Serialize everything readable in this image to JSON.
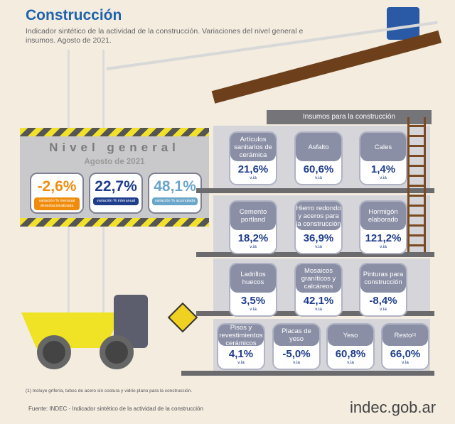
{
  "header": {
    "title": "Construcción",
    "subtitle": "Indicador sintético de la actividad de la construcción. Variaciones del nivel general e insumos. Agosto de 2021."
  },
  "nivel_general": {
    "title": "Nivel general",
    "period": "Agosto de 2021",
    "kpis": [
      {
        "value": "-2,6%",
        "label": "variación % mensual desestacionalizada",
        "color": "#ef8c0c"
      },
      {
        "value": "22,7%",
        "label": "variación % interanual",
        "color": "#1e3d8a"
      },
      {
        "value": "48,1%",
        "label": "variación % acumulada",
        "color": "#6aa6c9"
      }
    ]
  },
  "insumos": {
    "title": "Insumos para la construcción",
    "unit": "v.ia",
    "items": [
      {
        "name": "Artículos sanitarios de cerámica",
        "value": "21,6%"
      },
      {
        "name": "Asfalto",
        "value": "60,6%"
      },
      {
        "name": "Cales",
        "value": "1,4%"
      },
      {
        "name": "Cemento portland",
        "value": "18,2%"
      },
      {
        "name": "Hierro redondo y aceros para la construcción",
        "value": "36,9%"
      },
      {
        "name": "Hormigón elaborado",
        "value": "121,2%"
      },
      {
        "name": "Ladrillos huecos",
        "value": "3,5%"
      },
      {
        "name": "Mosaicos graníticos y calcáreos",
        "value": "42,1%"
      },
      {
        "name": "Pinturas para construcción",
        "value": "-8,4%"
      },
      {
        "name": "Pisos y revestimientos cerámicos",
        "value": "4,1%"
      },
      {
        "name": "Placas de yeso",
        "value": "-5,0%"
      },
      {
        "name": "Yeso",
        "value": "60,8%"
      },
      {
        "name": "Resto",
        "value": "66,0%",
        "note": "(1)"
      }
    ]
  },
  "footnote": "(1) Incluye grifería, tubos de acero sin costura y vidrio plano para la construcción.",
  "source": "Fuente: INDEC - Indicador sintético de la actividad de la construcción",
  "brand": "indec.gob.ar"
}
